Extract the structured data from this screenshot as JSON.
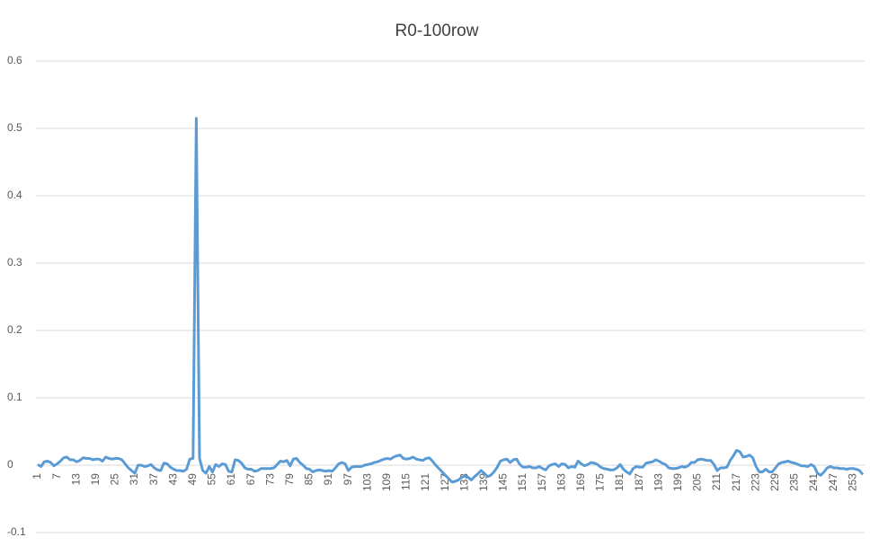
{
  "chart_data": {
    "type": "line",
    "title": "R0-100row",
    "categories": [
      1,
      null,
      null,
      null,
      null,
      null,
      7,
      null,
      null,
      null,
      null,
      null,
      13,
      null,
      null,
      null,
      null,
      null,
      19,
      null,
      null,
      null,
      null,
      null,
      25,
      null,
      null,
      null,
      null,
      null,
      31,
      null,
      null,
      null,
      null,
      null,
      37,
      null,
      null,
      null,
      null,
      null,
      43,
      null,
      null,
      null,
      null,
      null,
      49,
      null,
      null,
      null,
      null,
      null,
      55,
      null,
      null,
      null,
      null,
      null,
      61,
      null,
      null,
      null,
      null,
      null,
      67,
      null,
      null,
      null,
      null,
      null,
      73,
      null,
      null,
      null,
      null,
      null,
      79,
      null,
      null,
      null,
      null,
      null,
      85,
      null,
      null,
      null,
      null,
      null,
      91,
      null,
      null,
      null,
      null,
      null,
      97,
      null,
      null,
      null,
      null,
      null,
      103,
      null,
      null,
      null,
      null,
      null,
      109,
      null,
      null,
      null,
      null,
      null,
      115,
      null,
      null,
      null,
      null,
      null,
      121,
      null,
      null,
      null,
      null,
      null,
      127,
      null,
      null,
      null,
      null,
      null,
      133,
      null,
      null,
      null,
      null,
      null,
      139,
      null,
      null,
      null,
      null,
      null,
      145,
      null,
      null,
      null,
      null,
      null,
      151,
      null,
      null,
      null,
      null,
      null,
      157,
      null,
      null,
      null,
      null,
      null,
      163,
      null,
      null,
      null,
      null,
      null,
      169,
      null,
      null,
      null,
      null,
      null,
      175,
      null,
      null,
      null,
      null,
      null,
      181,
      null,
      null,
      null,
      null,
      null,
      187,
      null,
      null,
      null,
      null,
      null,
      193,
      null,
      null,
      null,
      null,
      null,
      199,
      null,
      null,
      null,
      null,
      null,
      205,
      null,
      null,
      null,
      null,
      null,
      211,
      null,
      null,
      null,
      null,
      null,
      217,
      null,
      null,
      null,
      null,
      null,
      223,
      null,
      null,
      null,
      null,
      null,
      229,
      null,
      null,
      null,
      null,
      null,
      235,
      null,
      null,
      null,
      null,
      null,
      241,
      null,
      null,
      null,
      null,
      null,
      247,
      null,
      null,
      null,
      null,
      null,
      253,
      null,
      null,
      null
    ],
    "values": [
      0.001,
      -0.002,
      0.005,
      0.006,
      0.004,
      -0.001,
      0.002,
      0.006,
      0.011,
      0.012,
      0.008,
      0.008,
      0.005,
      0.007,
      0.011,
      0.01,
      0.01,
      0.008,
      0.009,
      0.009,
      0.006,
      0.012,
      0.01,
      0.009,
      0.01,
      0.01,
      0.008,
      0.002,
      -0.004,
      -0.008,
      -0.012,
      0,
      0,
      -0.002,
      -0.001,
      0.001,
      -0.004,
      -0.007,
      -0.008,
      0.003,
      0.002,
      -0.003,
      -0.006,
      -0.008,
      -0.008,
      -0.009,
      -0.006,
      0.009,
      0.01,
      0.515,
      0.01,
      -0.008,
      -0.012,
      -0.002,
      -0.01,
      0.001,
      -0.002,
      0.002,
      0.001,
      -0.009,
      -0.01,
      0.008,
      0.007,
      0.003,
      -0.004,
      -0.006,
      -0.006,
      -0.009,
      -0.008,
      -0.005,
      -0.005,
      -0.005,
      -0.005,
      -0.004,
      0.001,
      0.006,
      0.005,
      0.007,
      -0.001,
      0.009,
      0.01,
      0.004,
      0,
      -0.005,
      -0.006,
      -0.01,
      -0.008,
      -0.007,
      -0.008,
      -0.009,
      -0.008,
      -0.009,
      -0.004,
      0.002,
      0.004,
      0.002,
      -0.008,
      -0.003,
      -0.002,
      -0.002,
      -0.002,
      0,
      0.001,
      0.002,
      0.004,
      0.005,
      0.007,
      0.009,
      0.01,
      0.009,
      0.012,
      0.014,
      0.015,
      0.01,
      0.009,
      0.01,
      0.012,
      0.009,
      0.008,
      0.007,
      0.01,
      0.011,
      0.006,
      0,
      -0.005,
      -0.01,
      -0.015,
      -0.02,
      -0.025,
      -0.024,
      -0.022,
      -0.018,
      -0.016,
      -0.018,
      -0.022,
      -0.017,
      -0.013,
      -0.008,
      -0.012,
      -0.017,
      -0.015,
      -0.01,
      -0.003,
      0.006,
      0.008,
      0.009,
      0.004,
      0.008,
      0.009,
      0.001,
      -0.003,
      -0.003,
      -0.002,
      -0.004,
      -0.004,
      -0.002,
      -0.005,
      -0.007,
      -0.001,
      0.001,
      0.002,
      -0.002,
      0.002,
      0.001,
      -0.004,
      -0.002,
      -0.003,
      0.006,
      0.002,
      -0.001,
      0.001,
      0.004,
      0.003,
      0.001,
      -0.003,
      -0.005,
      -0.006,
      -0.007,
      -0.007,
      -0.004,
      0.001,
      -0.006,
      -0.01,
      -0.013,
      -0.005,
      -0.002,
      -0.003,
      -0.003,
      0.003,
      0.004,
      0.005,
      0.008,
      0.006,
      0.003,
      0.001,
      -0.004,
      -0.005,
      -0.005,
      -0.004,
      -0.002,
      -0.003,
      -0.001,
      0.004,
      0.004,
      0.008,
      0.009,
      0.008,
      0.007,
      0.007,
      0.001,
      -0.008,
      -0.004,
      -0.004,
      -0.003,
      0.007,
      0.014,
      0.022,
      0.02,
      0.012,
      0.013,
      0.015,
      0.011,
      -0.002,
      -0.01,
      -0.01,
      -0.006,
      -0.01,
      -0.01,
      -0.004,
      0.002,
      0.004,
      0.005,
      0.006,
      0.004,
      0.003,
      0.001,
      -0.001,
      -0.001,
      -0.002,
      0.001,
      -0.002,
      -0.012,
      -0.015,
      -0.01,
      -0.004,
      -0.002,
      -0.004,
      -0.004,
      -0.005,
      -0.005,
      -0.006,
      -0.005,
      -0.005,
      -0.006,
      -0.008,
      -0.014
    ],
    "color": "#5b9bd5",
    "ylim": [
      -0.1,
      0.6
    ],
    "yticks": [
      -0.1,
      0,
      0.1,
      0.2,
      0.3,
      0.4,
      0.5,
      0.6
    ],
    "grid": true
  }
}
